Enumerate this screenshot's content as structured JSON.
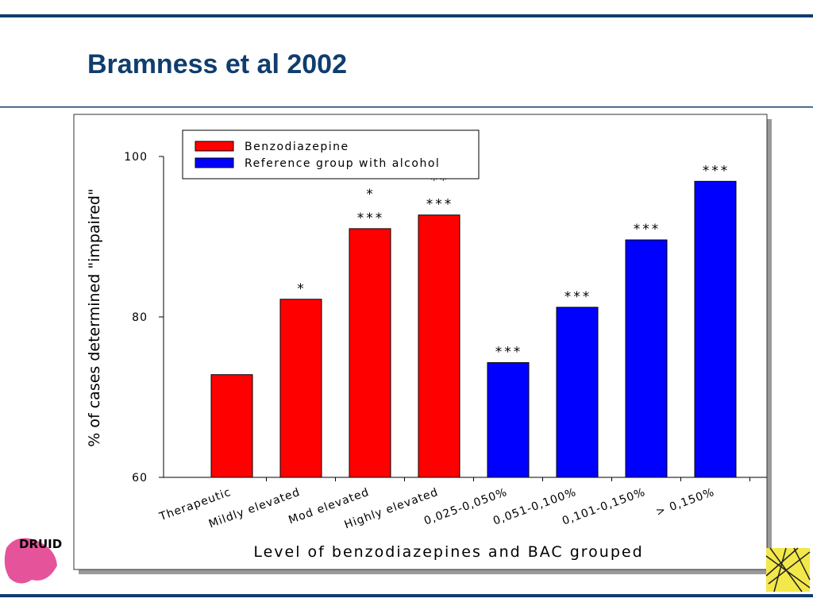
{
  "slide": {
    "title": "Bramness et al 2002",
    "logo": "DRUID"
  },
  "chart_data": {
    "type": "bar",
    "categories": [
      "Therapeutic",
      "Mildly elevated",
      "Mod elevated",
      "Highly elevated",
      "0,025-0,050%",
      "0,051-0,100%",
      "0,101-0,150%",
      "> 0,150%"
    ],
    "series": [
      {
        "name": "Benzodiazepine",
        "color": "#ff0000",
        "values": [
          72.8,
          82.2,
          91.0,
          92.7,
          null,
          null,
          null,
          null
        ]
      },
      {
        "name": "Reference group with alcohol",
        "color": "#0000ff",
        "values": [
          null,
          null,
          null,
          null,
          74.3,
          81.2,
          89.6,
          96.9
        ]
      }
    ],
    "annotations": [
      null,
      [
        "*"
      ],
      [
        "*",
        "***"
      ],
      [
        "**",
        "***"
      ],
      [
        "***"
      ],
      [
        "***"
      ],
      [
        "***"
      ],
      [
        "***"
      ]
    ],
    "x_label": "Level of benzodiazepines and BAC grouped",
    "y_label": "% of cases determined \"impaired\"",
    "ylim": [
      60,
      100
    ],
    "yticks": [
      60,
      80,
      100
    ],
    "grid": false,
    "legend": "top-left"
  }
}
